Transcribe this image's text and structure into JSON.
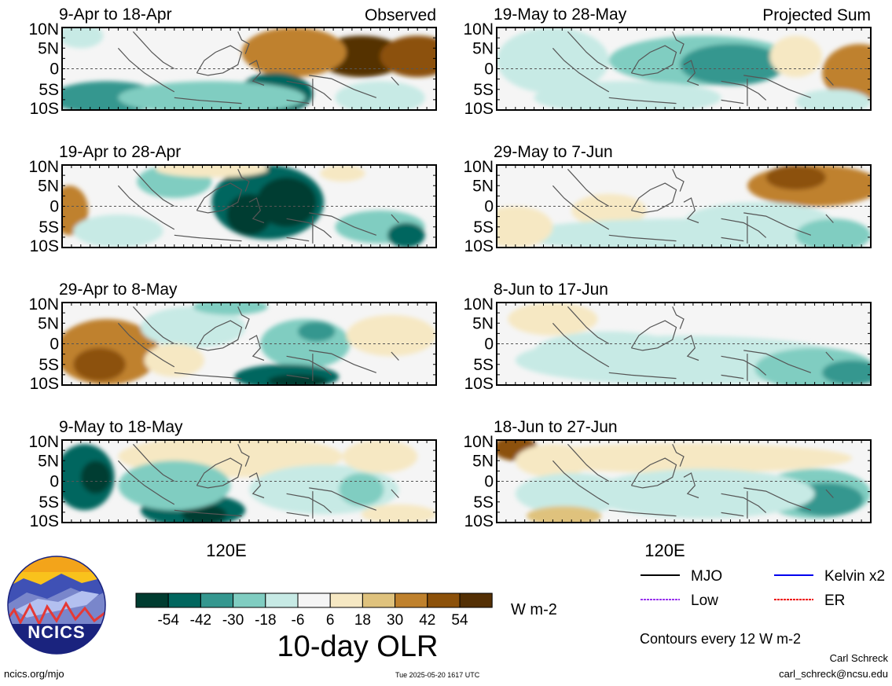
{
  "chart_data": {
    "type": "heatmap",
    "variable_title": "10-day OLR",
    "units": "W m-2",
    "contour_note": "Contours every 12 W m-2",
    "x_tick_label": "120E",
    "y_tick_labels": [
      "10N",
      "5N",
      "0",
      "5S",
      "10S"
    ],
    "colorbar": {
      "ticks": [
        "-54",
        "-42",
        "-30",
        "-18",
        "-6",
        "6",
        "18",
        "30",
        "42",
        "54"
      ],
      "colors": [
        "#003c30",
        "#01665e",
        "#35978f",
        "#80cdc1",
        "#c7eae5",
        "#f5f5f5",
        "#f6e8c3",
        "#dfc27d",
        "#bf812d",
        "#8c510a",
        "#543005"
      ]
    },
    "column_labels": {
      "left": "Observed",
      "right": "Projected Sum"
    },
    "panels": [
      {
        "period": "9-Apr to 18-Apr",
        "kind": "observed",
        "blobs": [
          [
            0.8,
            0.35,
            0.12,
            0.25,
            54
          ],
          [
            0.62,
            0.3,
            0.14,
            0.3,
            30
          ],
          [
            0.95,
            0.35,
            0.1,
            0.25,
            42
          ],
          [
            0.57,
            0.8,
            0.1,
            0.25,
            -42
          ],
          [
            0.12,
            0.85,
            0.15,
            0.2,
            -30
          ],
          [
            0.4,
            0.85,
            0.25,
            0.2,
            -18
          ],
          [
            0.85,
            0.85,
            0.12,
            0.2,
            -6
          ],
          [
            0.05,
            0.1,
            0.06,
            0.15,
            -6
          ]
        ]
      },
      {
        "period": "19-May to 28-May",
        "kind": "projected",
        "blobs": [
          [
            0.55,
            0.4,
            0.25,
            0.3,
            -18
          ],
          [
            0.63,
            0.45,
            0.14,
            0.25,
            -30
          ],
          [
            0.97,
            0.55,
            0.1,
            0.35,
            30
          ],
          [
            0.8,
            0.35,
            0.07,
            0.25,
            6
          ],
          [
            0.15,
            0.4,
            0.15,
            0.4,
            -6
          ],
          [
            0.35,
            0.85,
            0.25,
            0.2,
            -6
          ],
          [
            0.9,
            0.9,
            0.1,
            0.15,
            -6
          ]
        ]
      },
      {
        "period": "19-Apr to 28-Apr",
        "kind": "observed",
        "blobs": [
          [
            0.55,
            0.45,
            0.15,
            0.45,
            -42
          ],
          [
            0.6,
            0.45,
            0.08,
            0.3,
            -54
          ],
          [
            0.5,
            0.6,
            0.06,
            0.25,
            -54
          ],
          [
            0.02,
            0.55,
            0.05,
            0.3,
            30
          ],
          [
            0.3,
            0.2,
            0.1,
            0.2,
            -18
          ],
          [
            0.15,
            0.8,
            0.12,
            0.2,
            -6
          ],
          [
            0.85,
            0.75,
            0.12,
            0.2,
            -18
          ],
          [
            0.92,
            0.85,
            0.05,
            0.15,
            -42
          ],
          [
            0.4,
            0.05,
            0.15,
            0.1,
            6
          ],
          [
            0.75,
            0.1,
            0.06,
            0.1,
            6
          ]
        ]
      },
      {
        "period": "29-May to 7-Jun",
        "kind": "projected",
        "blobs": [
          [
            0.85,
            0.25,
            0.18,
            0.25,
            30
          ],
          [
            0.8,
            0.15,
            0.08,
            0.15,
            42
          ],
          [
            0.3,
            0.55,
            0.1,
            0.2,
            6
          ],
          [
            0.5,
            0.85,
            0.45,
            0.2,
            -6
          ],
          [
            0.7,
            0.7,
            0.2,
            0.25,
            -6
          ],
          [
            0.9,
            0.85,
            0.1,
            0.2,
            -18
          ],
          [
            0.05,
            0.75,
            0.1,
            0.25,
            6
          ]
        ]
      },
      {
        "period": "29-Apr to 8-May",
        "kind": "observed",
        "blobs": [
          [
            0.12,
            0.6,
            0.14,
            0.4,
            30
          ],
          [
            0.1,
            0.75,
            0.07,
            0.2,
            42
          ],
          [
            0.65,
            0.5,
            0.12,
            0.3,
            -18
          ],
          [
            0.68,
            0.35,
            0.05,
            0.12,
            -30
          ],
          [
            0.6,
            0.9,
            0.14,
            0.15,
            -42
          ],
          [
            0.63,
            0.95,
            0.08,
            0.08,
            -54
          ],
          [
            0.88,
            0.4,
            0.12,
            0.25,
            6
          ],
          [
            0.35,
            0.3,
            0.14,
            0.25,
            -6
          ],
          [
            0.45,
            0.05,
            0.1,
            0.1,
            -18
          ],
          [
            0.3,
            0.7,
            0.08,
            0.2,
            6
          ]
        ]
      },
      {
        "period": "8-Jun to 17-Jun",
        "kind": "projected",
        "blobs": [
          [
            0.15,
            0.2,
            0.12,
            0.2,
            6
          ],
          [
            0.5,
            0.7,
            0.45,
            0.3,
            -6
          ],
          [
            0.3,
            0.6,
            0.2,
            0.25,
            -6
          ],
          [
            0.85,
            0.8,
            0.16,
            0.25,
            -18
          ],
          [
            0.95,
            0.85,
            0.08,
            0.15,
            -30
          ]
        ]
      },
      {
        "period": "9-May to 18-May",
        "kind": "observed",
        "blobs": [
          [
            0.06,
            0.45,
            0.08,
            0.4,
            -42
          ],
          [
            0.09,
            0.45,
            0.04,
            0.2,
            -54
          ],
          [
            0.35,
            0.85,
            0.14,
            0.2,
            -42
          ],
          [
            0.38,
            0.9,
            0.06,
            0.12,
            -54
          ],
          [
            0.45,
            0.2,
            0.3,
            0.25,
            6
          ],
          [
            0.3,
            0.55,
            0.15,
            0.3,
            -18
          ],
          [
            0.7,
            0.6,
            0.2,
            0.3,
            -6
          ],
          [
            0.8,
            0.6,
            0.06,
            0.2,
            -18
          ],
          [
            0.9,
            0.9,
            0.1,
            0.12,
            6
          ],
          [
            0.85,
            0.2,
            0.1,
            0.2,
            6
          ]
        ]
      },
      {
        "period": "18-Jun to 27-Jun",
        "kind": "projected",
        "blobs": [
          [
            0.05,
            0.1,
            0.06,
            0.15,
            42
          ],
          [
            0.5,
            0.22,
            0.45,
            0.18,
            6
          ],
          [
            0.15,
            0.25,
            0.1,
            0.2,
            6
          ],
          [
            0.85,
            0.65,
            0.15,
            0.3,
            -18
          ],
          [
            0.88,
            0.72,
            0.1,
            0.2,
            -30
          ],
          [
            0.55,
            0.65,
            0.3,
            0.3,
            -6
          ],
          [
            0.2,
            0.65,
            0.15,
            0.25,
            -6
          ],
          [
            0.18,
            0.92,
            0.1,
            0.12,
            18
          ]
        ]
      }
    ]
  },
  "legend": {
    "entries": [
      {
        "label": "MJO",
        "color": "#000000",
        "style": "solid"
      },
      {
        "label": "Kelvin x2",
        "color": "#0000ee",
        "style": "solid"
      },
      {
        "label": "Low",
        "color": "#9933ee",
        "style": "dashed"
      },
      {
        "label": "ER",
        "color": "#ee0000",
        "style": "dashed"
      }
    ]
  },
  "logo": {
    "text": "NCICS"
  },
  "footer": {
    "website": "ncics.org/mjo",
    "timestamp": "Tue 2025-05-20 1617 UTC",
    "author": "Carl Schreck",
    "email": "carl_schreck@ncsu.edu"
  }
}
